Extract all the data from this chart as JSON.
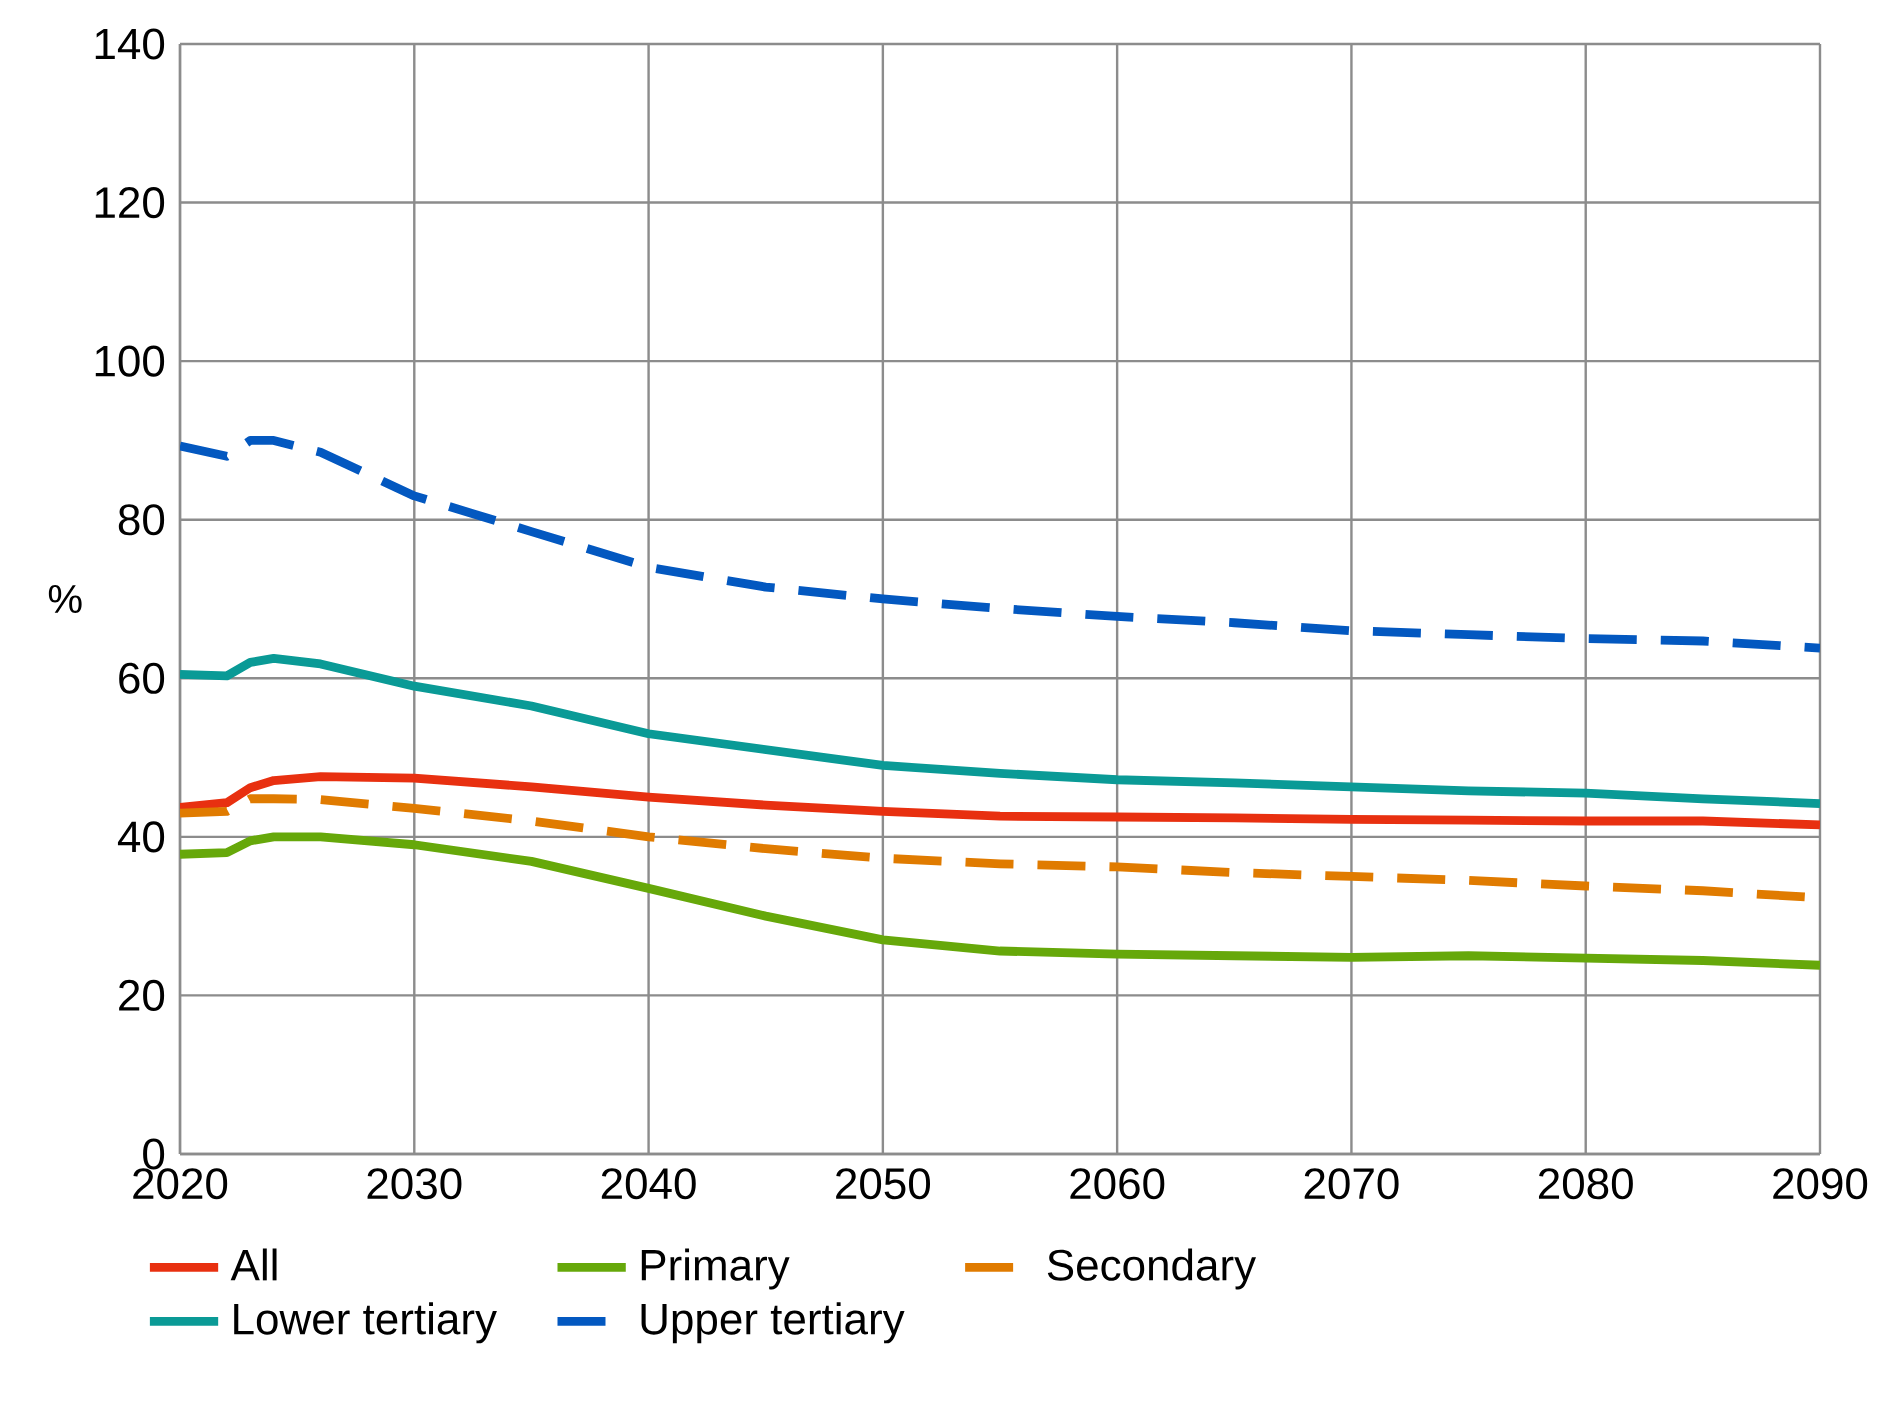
{
  "chart_data": {
    "type": "line",
    "ylabel": "%",
    "x": [
      2020,
      2022,
      2023,
      2024,
      2026,
      2030,
      2035,
      2040,
      2045,
      2050,
      2055,
      2060,
      2065,
      2070,
      2075,
      2080,
      2085,
      2090
    ],
    "series": [
      {
        "name": "All",
        "color": "#e83010",
        "line_style": "solid",
        "values": [
          43.7,
          44.3,
          46.2,
          47.1,
          47.6,
          47.4,
          46.3,
          45,
          44,
          43.2,
          42.6,
          42.5,
          42.4,
          42.2,
          42.1,
          42,
          42,
          41.5
        ]
      },
      {
        "name": "Primary",
        "color": "#66a80a",
        "line_style": "solid",
        "values": [
          37.8,
          38,
          39.5,
          40,
          40,
          39,
          36.9,
          33.5,
          30,
          27,
          25.6,
          25.2,
          25,
          24.8,
          25,
          24.7,
          24.4,
          23.8
        ]
      },
      {
        "name": "Secondary",
        "color": "#e07b00",
        "line_style": "dashed",
        "values": [
          43,
          43.2,
          44.8,
          44.8,
          44.7,
          43.6,
          42,
          40,
          38.5,
          37.3,
          36.6,
          36.2,
          35.5,
          35,
          34.5,
          33.8,
          33.2,
          32.3
        ]
      },
      {
        "name": "Lower tertiary",
        "color": "#0a9a96",
        "line_style": "solid",
        "values": [
          60.5,
          60.3,
          62,
          62.5,
          61.8,
          59,
          56.5,
          53,
          51,
          49,
          48,
          47.2,
          46.8,
          46.3,
          45.8,
          45.5,
          44.8,
          44.2
        ]
      },
      {
        "name": "Upper tertiary",
        "color": "#0358c0",
        "line_style": "dashed",
        "values": [
          89.3,
          88,
          90,
          90,
          88.5,
          83,
          78.5,
          74,
          71.5,
          70,
          68.8,
          67.8,
          67,
          66,
          65.5,
          65,
          64.7,
          63.8
        ]
      }
    ],
    "xlim": [
      2020,
      2090
    ],
    "xticks": [
      2020,
      2030,
      2040,
      2050,
      2060,
      2070,
      2080,
      2090
    ],
    "ylim": [
      0,
      140
    ],
    "yticks": [
      0,
      20,
      40,
      60,
      80,
      100,
      120,
      140
    ],
    "grid": true,
    "legend": "bottom",
    "marker": "none"
  }
}
